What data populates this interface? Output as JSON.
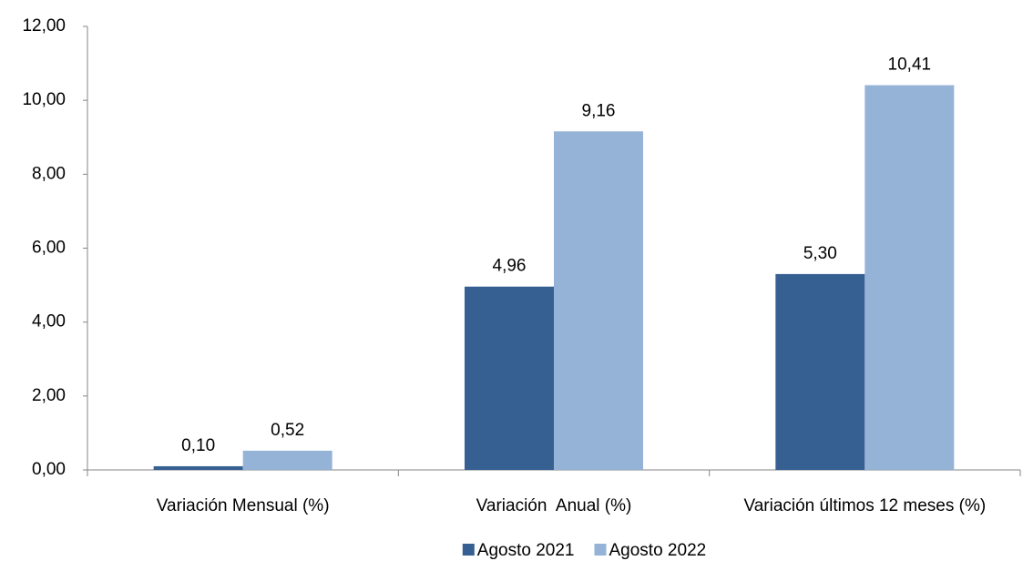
{
  "chart_data": {
    "type": "bar",
    "categories": [
      "Variación Mensual (%)",
      "Variación  Anual (%)",
      "Variación últimos 12 meses (%)"
    ],
    "series": [
      {
        "name": "Agosto 2021",
        "color": "#376092",
        "values": [
          0.1,
          4.96,
          5.3
        ],
        "value_labels": [
          "0,10",
          "4,96",
          "5,30"
        ]
      },
      {
        "name": "Agosto 2022",
        "color": "#95b3d7",
        "values": [
          0.52,
          9.16,
          10.41
        ],
        "value_labels": [
          "0,52",
          "9,16",
          "10,41"
        ]
      }
    ],
    "ylim": [
      0,
      12
    ],
    "yticks": [
      {
        "value": 0,
        "label": "0,00"
      },
      {
        "value": 2,
        "label": "2,00"
      },
      {
        "value": 4,
        "label": "4,00"
      },
      {
        "value": 6,
        "label": "6,00"
      },
      {
        "value": 8,
        "label": "8,00"
      },
      {
        "value": 10,
        "label": "10,00"
      },
      {
        "value": 12,
        "label": "12,00"
      }
    ],
    "grid": false,
    "legend": "bottom"
  }
}
